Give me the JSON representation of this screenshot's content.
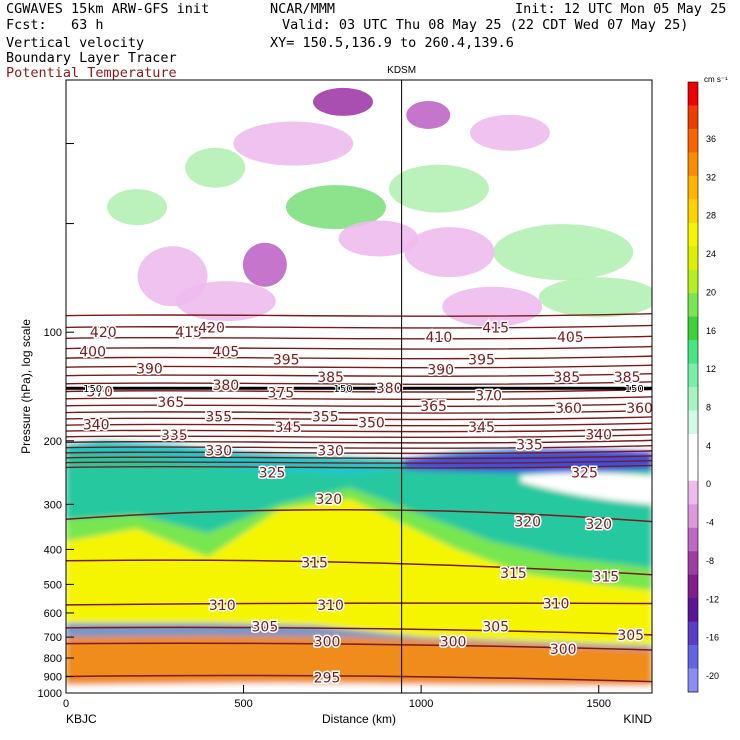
{
  "header": {
    "model": "CGWAVES 15km ARW-GFS init",
    "forecast": "Fcst:   63 h",
    "var1": "Vertical velocity",
    "var2": "Boundary Layer Tracer",
    "var3": "Potential Temperature",
    "center": "NCAR/MMM",
    "init": "Init: 12 UTC Mon 05 May 25",
    "valid": "Valid: 03 UTC Thu 08 May 25 (22 CDT Wed 07 May 25)",
    "xy": "XY= 150.5,136.9 to 260.4,139.6",
    "var3_color": "#8b1a1a"
  },
  "chart_data": {
    "type": "heatmap",
    "title": "",
    "marker_label": "KDSM",
    "marker_x": 945,
    "xlabel": "Distance (km)",
    "ylabel": "Pressure (hPa), log scale",
    "xlim": [
      0,
      1650
    ],
    "ylim": [
      1000,
      20
    ],
    "x_ticks": [
      0,
      500,
      1000,
      1500
    ],
    "y_ticks": [
      100,
      200,
      300,
      400,
      500,
      600,
      700,
      800,
      900,
      1000
    ],
    "y_ticks_unlabeled": [
      30,
      50
    ],
    "left_station": "KBJC",
    "right_station": "KIND",
    "colorbar": {
      "unit": "cm s⁻¹",
      "ticks": [
        36,
        32,
        28,
        24,
        20,
        16,
        12,
        8,
        4,
        0,
        -4,
        -8,
        -12,
        -16,
        -20
      ],
      "colors": [
        "#f00000",
        "#f23c00",
        "#fa6400",
        "#ff8c00",
        "#ffb400",
        "#ffd200",
        "#f5f500",
        "#dcf000",
        "#b4f020",
        "#78e650",
        "#3cd23c",
        "#46e682",
        "#78f0aa",
        "#a5f5c3",
        "#d2fae6",
        "#ffffff",
        "#ffffff",
        "#eebbee",
        "#dd99dd",
        "#c066c8",
        "#a03ca8",
        "#821c8c",
        "#5a1496",
        "#5a3cc8",
        "#6464e6",
        "#8c8cf5"
      ]
    },
    "theta_labels": [
      {
        "v": "420",
        "x": 105,
        "p": 100
      },
      {
        "v": "415",
        "x": 345,
        "p": 100
      },
      {
        "v": "420",
        "x": 410,
        "p": 97
      },
      {
        "v": "415",
        "x": 1210,
        "p": 97
      },
      {
        "v": "410",
        "x": 1050,
        "p": 103
      },
      {
        "v": "405",
        "x": 1420,
        "p": 103
      },
      {
        "v": "400",
        "x": 75,
        "p": 113
      },
      {
        "v": "405",
        "x": 450,
        "p": 113
      },
      {
        "v": "395",
        "x": 620,
        "p": 119
      },
      {
        "v": "395",
        "x": 1170,
        "p": 119
      },
      {
        "v": "390",
        "x": 235,
        "p": 126
      },
      {
        "v": "390",
        "x": 1055,
        "p": 127
      },
      {
        "v": "385",
        "x": 745,
        "p": 133
      },
      {
        "v": "385",
        "x": 1410,
        "p": 133
      },
      {
        "v": "385",
        "x": 1580,
        "p": 133
      },
      {
        "v": "380",
        "x": 450,
        "p": 140
      },
      {
        "v": "380",
        "x": 910,
        "p": 143
      },
      {
        "v": "375",
        "x": 605,
        "p": 147
      },
      {
        "v": "370",
        "x": 95,
        "p": 146
      },
      {
        "v": "370",
        "x": 1190,
        "p": 150
      },
      {
        "v": "365",
        "x": 295,
        "p": 156
      },
      {
        "v": "365",
        "x": 1035,
        "p": 160
      },
      {
        "v": "360",
        "x": 1415,
        "p": 162
      },
      {
        "v": "360",
        "x": 1615,
        "p": 162
      },
      {
        "v": "355",
        "x": 430,
        "p": 171
      },
      {
        "v": "355",
        "x": 730,
        "p": 171
      },
      {
        "v": "350",
        "x": 860,
        "p": 178
      },
      {
        "v": "345",
        "x": 625,
        "p": 183
      },
      {
        "v": "345",
        "x": 1170,
        "p": 183
      },
      {
        "v": "340",
        "x": 85,
        "p": 180
      },
      {
        "v": "340",
        "x": 1500,
        "p": 192
      },
      {
        "v": "335",
        "x": 305,
        "p": 193
      },
      {
        "v": "335",
        "x": 1305,
        "p": 205
      },
      {
        "v": "330",
        "x": 430,
        "p": 213
      },
      {
        "v": "330",
        "x": 745,
        "p": 213
      },
      {
        "v": "325",
        "x": 580,
        "p": 245
      },
      {
        "v": "325",
        "x": 1460,
        "p": 245
      },
      {
        "v": "320",
        "x": 740,
        "p": 290
      },
      {
        "v": "320",
        "x": 1300,
        "p": 335
      },
      {
        "v": "320",
        "x": 1500,
        "p": 340
      },
      {
        "v": "315",
        "x": 700,
        "p": 435
      },
      {
        "v": "315",
        "x": 1260,
        "p": 465
      },
      {
        "v": "315",
        "x": 1520,
        "p": 475
      },
      {
        "v": "310",
        "x": 440,
        "p": 570
      },
      {
        "v": "310",
        "x": 745,
        "p": 570
      },
      {
        "v": "310",
        "x": 1380,
        "p": 565
      },
      {
        "v": "305",
        "x": 560,
        "p": 655
      },
      {
        "v": "305",
        "x": 1210,
        "p": 655
      },
      {
        "v": "305",
        "x": 1590,
        "p": 690
      },
      {
        "v": "300",
        "x": 735,
        "p": 720
      },
      {
        "v": "300",
        "x": 1090,
        "p": 720
      },
      {
        "v": "300",
        "x": 1400,
        "p": 755
      },
      {
        "v": "295",
        "x": 735,
        "p": 905
      }
    ],
    "tracer_labels": [
      {
        "v": "150",
        "x": 75,
        "p": 143
      },
      {
        "v": "150",
        "x": 780,
        "p": 143
      },
      {
        "v": "150",
        "x": 1600,
        "p": 143
      }
    ]
  }
}
